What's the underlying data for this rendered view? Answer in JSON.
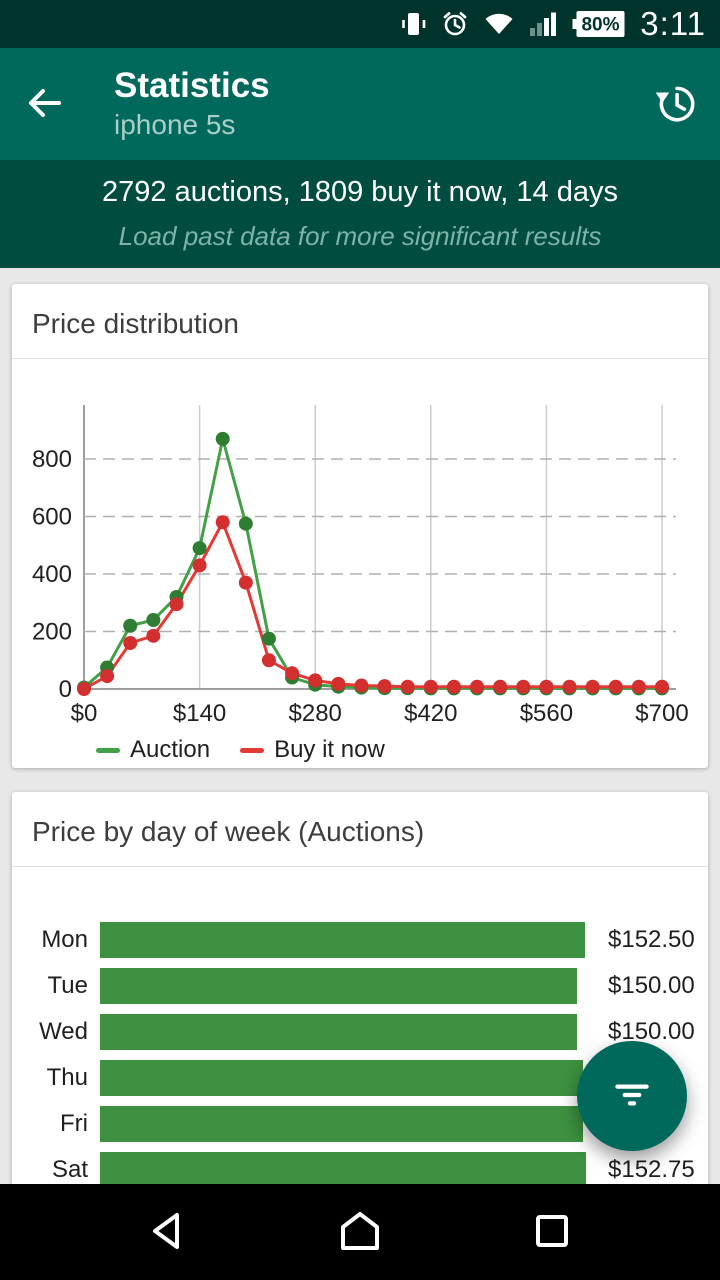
{
  "status_bar": {
    "time": "3:11",
    "battery_percent": "80%",
    "icons": [
      "vibrate-icon",
      "alarm-icon",
      "wifi-icon",
      "signal-icon",
      "battery-icon"
    ]
  },
  "app_bar": {
    "title": "Statistics",
    "subtitle": "iphone 5s",
    "left_icon": "back-arrow-icon",
    "right_icon": "history-icon"
  },
  "summary_banner": {
    "stats": "2792 auctions, 1809 buy it now, 14 days",
    "hint": "Load past data for more significant results"
  },
  "colors": {
    "app_bar": "#00695c",
    "banner": "#004d40",
    "status_bar": "#00332b",
    "auction_green": "#43a047",
    "buy_now_red": "#e53935",
    "bar_green": "#3d9140",
    "card_bg": "#ffffff",
    "page_bg": "#e8e8e8"
  },
  "price_distribution_card": {
    "title": "Price distribution"
  },
  "day_of_week_card": {
    "title": "Price by day of week (Auctions)"
  },
  "fab": {
    "icon": "filter-icon"
  },
  "nav_bar": {
    "icons": [
      "back-triangle-icon",
      "home-icon",
      "recents-square-icon"
    ]
  },
  "chart_data": [
    {
      "type": "line",
      "title": "Price distribution",
      "x": [
        0,
        28,
        56,
        84,
        112,
        140,
        168,
        196,
        224,
        252,
        280,
        308,
        336,
        364,
        392,
        420,
        448,
        476,
        504,
        532,
        560,
        588,
        616,
        644,
        672,
        700
      ],
      "series": [
        {
          "name": "Auction",
          "color": "#43a047",
          "point_color": "#2e7d32",
          "values": [
            5,
            75,
            220,
            240,
            320,
            490,
            870,
            575,
            175,
            40,
            15,
            8,
            5,
            3,
            3,
            2,
            2,
            2,
            2,
            2,
            2,
            2,
            2,
            2,
            2,
            2
          ]
        },
        {
          "name": "Buy it now",
          "color": "#e53935",
          "point_color": "#d32f2f",
          "values": [
            0,
            45,
            160,
            185,
            295,
            430,
            580,
            370,
            100,
            55,
            30,
            18,
            12,
            10,
            8,
            8,
            8,
            8,
            8,
            8,
            8,
            8,
            8,
            8,
            8,
            8
          ]
        }
      ],
      "xlim": [
        0,
        700
      ],
      "ylim": [
        0,
        950
      ],
      "x_ticks": [
        {
          "value": 0,
          "label": "$0"
        },
        {
          "value": 140,
          "label": "$140"
        },
        {
          "value": 280,
          "label": "$280"
        },
        {
          "value": 420,
          "label": "$420"
        },
        {
          "value": 560,
          "label": "$560"
        },
        {
          "value": 700,
          "label": "$700"
        }
      ],
      "y_ticks": [
        0,
        200,
        400,
        600,
        800
      ],
      "grid": "horizontal-dashed, vertical-solid",
      "legend_position": "bottom-left"
    },
    {
      "type": "bar",
      "title": "Price by day of week (Auctions)",
      "orientation": "horizontal",
      "categories": [
        "Mon",
        "Tue",
        "Wed",
        "Thu",
        "Fri",
        "Sat"
      ],
      "values": [
        152.5,
        150.0,
        150.0,
        152.0,
        152.0,
        152.75
      ],
      "value_labels": [
        "$152.50",
        "$150.00",
        "$150.00",
        "",
        "",
        "$152.75"
      ],
      "bar_color": "#3d9140",
      "xlim": [
        0,
        156
      ]
    }
  ]
}
